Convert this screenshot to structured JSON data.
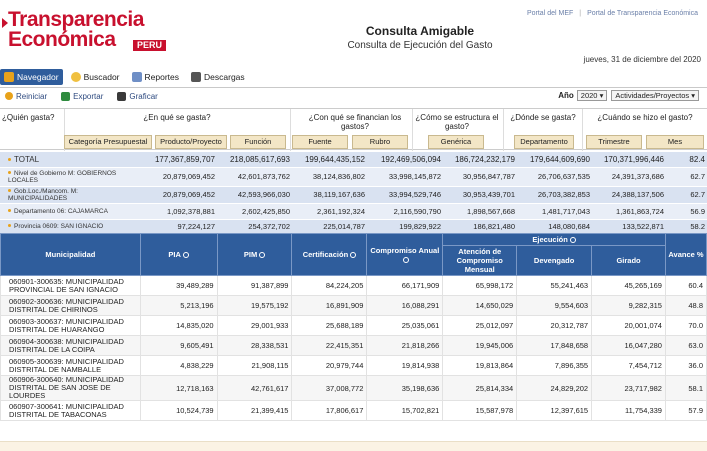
{
  "logo": {
    "line1": "Transparencia",
    "line2": "Económica",
    "badge": "PERU"
  },
  "top_links": [
    "Portal del MEF",
    "Portal de Transparencia Económica"
  ],
  "title": {
    "main": "Consulta Amigable",
    "sub": "Consulta de Ejecución del Gasto"
  },
  "date": "jueves, 31 de diciembre del 2020",
  "toolbar": {
    "navegador": "Navegador",
    "buscador": "Buscador",
    "reportes": "Reportes",
    "descargas": "Descargas"
  },
  "subtoolbar": {
    "reiniciar": "Reiniciar",
    "exportar": "Exportar",
    "graficar": "Graficar"
  },
  "year": {
    "label": "Año",
    "value": "2020",
    "mode": "Actividades/Proyectos"
  },
  "questions": {
    "quien": "¿Quién gasta?",
    "en_que": "¿En qué se gasta?",
    "con_que": "¿Con qué se financian los gastos?",
    "estructura": "¿Cómo se estructura el gasto?",
    "donde": "¿Dónde se gasta?",
    "cuando": "¿Cuándo se hizo el gasto?"
  },
  "question_buttons": {
    "categoria": "Categoría Presupuestal",
    "producto": "Producto/Proyecto",
    "funcion": "Función",
    "fuente": "Fuente",
    "rubro": "Rubro",
    "generica": "Genérica",
    "departamento": "Departamento",
    "trimestre": "Trimestre",
    "mes": "Mes"
  },
  "summary_rows": [
    {
      "label": "TOTAL",
      "values": [
        "177,367,859,707",
        "218,085,617,693",
        "199,644,435,152",
        "192,469,506,094",
        "186,724,232,179",
        "179,644,609,690",
        "170,371,996,446",
        "82.4"
      ]
    },
    {
      "label": "Nivel de Gobierno M: GOBIERNOS LOCALES",
      "values": [
        "20,879,069,452",
        "42,601,873,762",
        "38,124,836,802",
        "33,998,145,872",
        "30,956,847,787",
        "26,706,637,535",
        "24,391,373,686",
        "62.7"
      ]
    },
    {
      "label": "Gob.Loc./Mancom. M: MUNICIPALIDADES",
      "values": [
        "20,879,069,452",
        "42,593,966,030",
        "38,119,167,636",
        "33,994,529,746",
        "30,953,439,701",
        "26,703,382,853",
        "24,388,137,506",
        "62.7"
      ]
    },
    {
      "label": "Departamento 06: CAJAMARCA",
      "values": [
        "1,092,378,881",
        "2,602,425,850",
        "2,361,192,324",
        "2,116,590,790",
        "1,898,567,668",
        "1,481,717,043",
        "1,361,863,724",
        "56.9"
      ]
    },
    {
      "label": "Provincia 0609: SAN IGNACIO",
      "values": [
        "97,224,127",
        "254,372,702",
        "225,014,787",
        "199,829,922",
        "186,821,480",
        "148,080,684",
        "133,522,871",
        "58.2"
      ]
    }
  ],
  "main_table": {
    "headers": {
      "municipalidad": "Municipalidad",
      "pia": "PIA",
      "pim": "PIM",
      "certificacion": "Certificación",
      "compromiso_anual": "Compromiso Anual",
      "ejecucion": "Ejecución",
      "atencion": "Atención de Compromiso Mensual",
      "devengado": "Devengado",
      "girado": "Girado",
      "avance": "Avance %"
    },
    "rows": [
      {
        "name": "060901-300635: MUNICIPALIDAD PROVINCIAL DE SAN IGNACIO",
        "values": [
          "39,489,289",
          "91,387,899",
          "84,224,205",
          "66,171,909",
          "65,998,172",
          "55,241,463",
          "45,265,169",
          "60.4"
        ]
      },
      {
        "name": "060902-300636: MUNICIPALIDAD DISTRITAL DE CHIRINOS",
        "values": [
          "5,213,196",
          "19,575,192",
          "16,891,909",
          "16,088,291",
          "14,650,029",
          "9,554,603",
          "9,282,315",
          "48.8"
        ]
      },
      {
        "name": "060903-300637: MUNICIPALIDAD DISTRITAL DE HUARANGO",
        "values": [
          "14,835,020",
          "29,001,933",
          "25,688,189",
          "25,035,061",
          "25,012,097",
          "20,312,787",
          "20,001,074",
          "70.0"
        ]
      },
      {
        "name": "060904-300638: MUNICIPALIDAD DISTRITAL DE LA COIPA",
        "values": [
          "9,605,491",
          "28,338,531",
          "22,415,351",
          "21,818,266",
          "19,945,006",
          "17,848,658",
          "16,047,280",
          "63.0"
        ]
      },
      {
        "name": "060905-300639: MUNICIPALIDAD DISTRITAL DE NAMBALLE",
        "values": [
          "4,838,229",
          "21,908,115",
          "20,979,744",
          "19,814,938",
          "19,813,864",
          "7,896,355",
          "7,454,712",
          "36.0"
        ]
      },
      {
        "name": "060906-300640: MUNICIPALIDAD DISTRITAL DE SAN JOSE DE LOURDES",
        "values": [
          "12,718,163",
          "42,761,617",
          "37,008,772",
          "35,198,636",
          "25,814,334",
          "24,829,202",
          "23,717,982",
          "58.1"
        ]
      },
      {
        "name": "060907-300641: MUNICIPALIDAD DISTRITAL DE TABACONAS",
        "values": [
          "10,524,739",
          "21,399,415",
          "17,806,617",
          "15,702,821",
          "15,587,978",
          "12,397,615",
          "11,754,339",
          "57.9"
        ]
      }
    ]
  }
}
